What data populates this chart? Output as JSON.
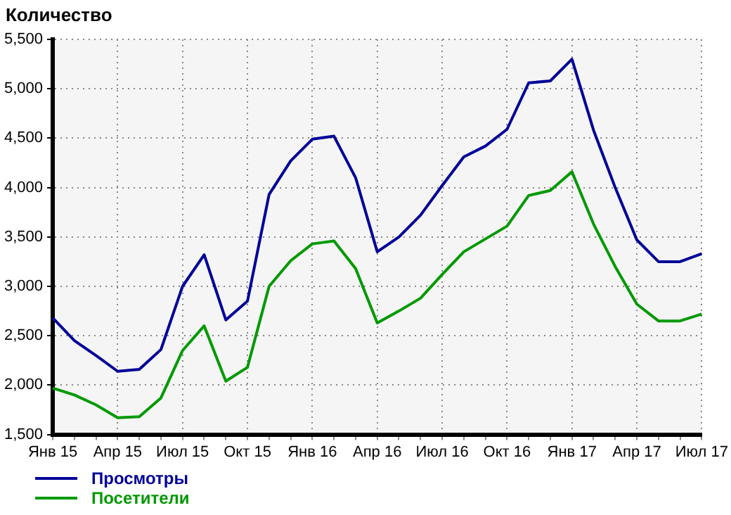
{
  "chart_data": {
    "type": "line",
    "ylabel": "Количество",
    "categories": [
      "Янв 15",
      null,
      null,
      "Апр 15",
      null,
      null,
      "Июл 15",
      null,
      null,
      "Окт 15",
      null,
      null,
      "Янв 16",
      null,
      null,
      "Апр 16",
      null,
      null,
      "Июл 16",
      null,
      null,
      "Окт 16",
      null,
      null,
      "Янв 17",
      null,
      null,
      "Апр 17",
      null,
      null,
      "Июл 17"
    ],
    "series": [
      {
        "name": "Просмотры",
        "color": "#000099",
        "values": [
          2680,
          2450,
          2300,
          2140,
          2160,
          2360,
          3000,
          3320,
          2660,
          2850,
          3930,
          4270,
          4490,
          4520,
          4100,
          3350,
          3500,
          3720,
          4020,
          4310,
          4420,
          4590,
          5060,
          5080,
          5300,
          4580,
          4000,
          3470,
          3250,
          3250,
          3330
        ]
      },
      {
        "name": "Посетители",
        "color": "#009900",
        "values": [
          1970,
          1900,
          1800,
          1670,
          1680,
          1870,
          2350,
          2600,
          2040,
          2180,
          3000,
          3260,
          3430,
          3460,
          3180,
          2630,
          2750,
          2880,
          3120,
          3350,
          3480,
          3610,
          3920,
          3970,
          4160,
          3630,
          3200,
          2820,
          2650,
          2650,
          2720
        ]
      }
    ],
    "ylim": [
      1500,
      5500
    ],
    "yticks": [
      {
        "value": 1500,
        "label": "1,500"
      },
      {
        "value": 2000,
        "label": "2,000"
      },
      {
        "value": 2500,
        "label": "2,500"
      },
      {
        "value": 3000,
        "label": "3,000"
      },
      {
        "value": 3500,
        "label": "3,500"
      },
      {
        "value": 4000,
        "label": "4,000"
      },
      {
        "value": 4500,
        "label": "4,500"
      },
      {
        "value": 5000,
        "label": "5,000"
      },
      {
        "value": 5500,
        "label": "5,500"
      }
    ],
    "grid": true,
    "legend": "bottom left",
    "marker": "none",
    "line_style": "solid"
  }
}
